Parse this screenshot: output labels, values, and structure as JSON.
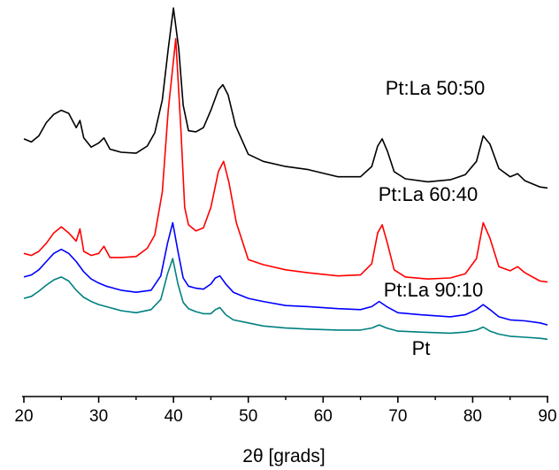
{
  "chart_data": {
    "type": "line",
    "xlabel": "2θ [grads]",
    "ylabel": "",
    "xlim": [
      20,
      90
    ],
    "xticks": [
      "20",
      "30",
      "40",
      "50",
      "60",
      "70",
      "80",
      "90"
    ],
    "grid": false,
    "legend": "none",
    "series": [
      {
        "name": "Pt:La 50:50",
        "color": "#000000",
        "x": [
          20,
          21,
          22,
          23,
          24,
          25,
          26,
          27,
          27.5,
          28,
          29,
          30,
          30.7,
          31.5,
          33,
          35,
          36.5,
          37.5,
          38.5,
          39.3,
          40,
          40.7,
          41.3,
          42,
          43,
          44,
          45,
          46,
          46.6,
          47.3,
          48.3,
          50,
          52,
          55,
          58,
          62,
          65,
          66.5,
          67.3,
          67.9,
          68.6,
          69.5,
          71,
          74,
          77,
          79,
          80.5,
          81.4,
          82.3,
          83.5,
          85,
          86,
          87,
          89,
          90
        ],
        "values": [
          25.2,
          24.9,
          25.5,
          26.8,
          27.6,
          28.0,
          27.7,
          26.3,
          27.0,
          25.3,
          24.4,
          24.8,
          25.3,
          24.2,
          23.9,
          23.8,
          24.5,
          25.8,
          29.0,
          34.0,
          38.0,
          34.0,
          28.5,
          26.0,
          25.9,
          26.3,
          28.0,
          30.0,
          30.5,
          29.5,
          26.5,
          23.7,
          23.0,
          22.5,
          22.2,
          21.5,
          21.5,
          22.5,
          24.5,
          25.2,
          24.0,
          22.0,
          21.3,
          21.0,
          21.2,
          21.7,
          23.0,
          25.5,
          24.7,
          22.3,
          21.5,
          21.8,
          21.1,
          20.5,
          20.4
        ]
      },
      {
        "name": "Pt:La 60:40",
        "color": "#ff0000",
        "x": [
          20,
          21,
          22,
          23,
          24,
          25,
          26,
          27,
          27.5,
          28,
          29,
          30,
          30.7,
          31.5,
          33,
          35,
          36.5,
          37.5,
          38.5,
          39.3,
          40.3,
          41,
          41.5,
          42,
          43,
          44,
          45,
          46,
          46.7,
          47.4,
          48.4,
          50,
          52,
          55,
          58,
          62,
          65,
          66.5,
          67.3,
          67.9,
          68.6,
          69.5,
          71,
          74,
          77,
          79,
          80.5,
          81.4,
          82.3,
          83.5,
          85,
          86,
          87,
          89,
          90
        ],
        "values": [
          14.0,
          13.8,
          14.2,
          15.0,
          16.0,
          16.6,
          16.0,
          15.2,
          16.4,
          14.2,
          13.8,
          14.0,
          14.7,
          13.6,
          13.6,
          13.7,
          14.5,
          15.8,
          20.0,
          28.0,
          35.0,
          26.0,
          18.5,
          16.8,
          16.2,
          16.5,
          18.5,
          22.0,
          23.0,
          21.0,
          17.0,
          13.4,
          12.9,
          12.4,
          12.1,
          11.8,
          11.9,
          13.0,
          16.0,
          16.8,
          15.0,
          12.4,
          11.7,
          11.5,
          11.6,
          12.0,
          13.5,
          17.0,
          15.5,
          12.7,
          12.3,
          12.7,
          12.1,
          11.3,
          11.2
        ]
      },
      {
        "name": "Pt:La 90:10",
        "color": "#0000ff",
        "x": [
          20,
          21,
          22,
          23,
          24,
          25,
          26,
          27,
          28,
          29,
          30,
          31,
          32,
          33,
          35,
          37,
          38.3,
          39.2,
          39.9,
          40.6,
          41.3,
          42,
          43,
          44,
          45,
          45.6,
          46.2,
          47,
          48,
          50,
          52,
          55,
          58,
          62,
          65,
          66.5,
          67.5,
          68.5,
          70,
          73,
          77,
          79,
          80.5,
          81.4,
          82.3,
          83.5,
          85,
          87,
          89,
          90
        ],
        "values": [
          11.7,
          11.9,
          12.4,
          13.2,
          14.0,
          14.4,
          14.0,
          13.2,
          12.2,
          11.5,
          11.1,
          10.8,
          10.6,
          10.4,
          10.2,
          10.4,
          11.8,
          15.0,
          17.0,
          14.2,
          11.6,
          10.8,
          10.6,
          10.5,
          11.0,
          11.6,
          11.8,
          11.0,
          10.2,
          9.6,
          9.3,
          8.9,
          8.8,
          8.6,
          8.5,
          8.8,
          9.3,
          8.8,
          8.2,
          8.0,
          7.8,
          8.0,
          8.5,
          9.0,
          8.5,
          7.8,
          7.5,
          7.4,
          7.2,
          7.0
        ]
      },
      {
        "name": "Pt",
        "color": "#008080",
        "x": [
          20,
          21,
          22,
          23,
          24,
          25,
          26,
          27,
          28,
          29,
          30,
          31,
          32,
          33,
          35,
          37,
          38.3,
          39.2,
          39.9,
          40.6,
          41.3,
          42,
          43,
          44,
          45,
          45.6,
          46.2,
          47,
          48,
          50,
          52,
          55,
          58,
          62,
          65,
          66.5,
          67.5,
          68.5,
          70,
          73,
          77,
          79,
          80.5,
          81.4,
          82.3,
          83.5,
          85,
          87,
          89,
          90
        ],
        "values": [
          9.6,
          9.8,
          10.3,
          10.9,
          11.4,
          11.7,
          11.3,
          10.4,
          9.7,
          9.3,
          9.0,
          8.8,
          8.6,
          8.4,
          8.2,
          8.5,
          9.5,
          12.0,
          13.5,
          11.0,
          9.2,
          8.6,
          8.3,
          8.1,
          8.1,
          8.5,
          8.7,
          8.0,
          7.5,
          7.2,
          6.9,
          6.7,
          6.6,
          6.5,
          6.5,
          6.7,
          7.0,
          6.7,
          6.4,
          6.3,
          6.2,
          6.3,
          6.5,
          6.8,
          6.4,
          6.1,
          5.9,
          5.8,
          5.7,
          5.6
        ]
      }
    ],
    "labels": [
      "Pt:La 50:50",
      "Pt:La 60:40",
      "Pt:La 90:10",
      "Pt"
    ]
  }
}
